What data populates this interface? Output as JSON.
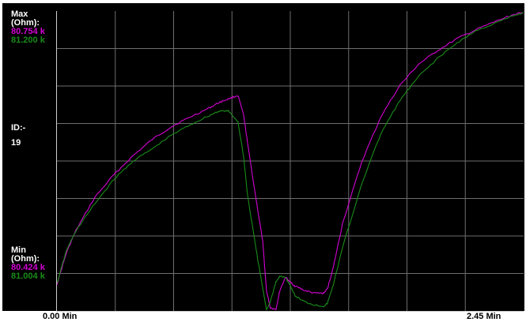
{
  "labels": {
    "max_title_1": "Max",
    "max_title_2": "(Ohm):",
    "max_series_a": "80.754 k",
    "max_series_b": "81.200 k",
    "id_label": "ID:-",
    "id_value": "19",
    "min_title_1": "Min",
    "min_title_2": "(Ohm):",
    "min_series_a": "80.424 k",
    "min_series_b": "81.004 k",
    "x_start": "0.00 Min",
    "x_end": "2.45 Min"
  },
  "colors": {
    "background": "#000000",
    "grid": "#6e6e6e",
    "series_a": "#d200d2",
    "series_b": "#1a8c1a"
  },
  "chart_data": {
    "type": "line",
    "x_unit": "Min",
    "xlim": [
      0,
      2.45
    ],
    "grid": true,
    "series": [
      {
        "color": "#d200d2",
        "ylim": [
          80.424,
          80.754
        ],
        "x": [
          0,
          0.05,
          0.1,
          0.2,
          0.3,
          0.4,
          0.5,
          0.6,
          0.7,
          0.8,
          0.85,
          0.9,
          0.95,
          0.98,
          1.0,
          1.05,
          1.08,
          1.1,
          1.12,
          1.15,
          1.17,
          1.2,
          1.22,
          1.25,
          1.3,
          1.35,
          1.4,
          1.42,
          1.45,
          1.5,
          1.6,
          1.7,
          1.8,
          1.9,
          2.0,
          2.1,
          2.2,
          2.3,
          2.4,
          2.45
        ],
        "y": [
          80.452,
          80.487,
          80.512,
          80.549,
          80.574,
          80.595,
          80.613,
          80.627,
          80.638,
          80.648,
          80.654,
          80.658,
          80.662,
          80.64,
          80.61,
          80.54,
          80.5,
          80.445,
          80.426,
          80.424,
          80.445,
          80.46,
          80.455,
          80.45,
          80.445,
          80.442,
          80.442,
          80.447,
          80.47,
          80.52,
          80.588,
          80.638,
          80.673,
          80.697,
          80.712,
          80.725,
          80.735,
          80.744,
          80.752,
          80.754
        ]
      },
      {
        "color": "#1a8c1a",
        "ylim": [
          81.004,
          81.2
        ],
        "x": [
          0,
          0.05,
          0.1,
          0.2,
          0.3,
          0.4,
          0.5,
          0.6,
          0.7,
          0.8,
          0.85,
          0.9,
          0.95,
          0.98,
          1.0,
          1.05,
          1.08,
          1.1,
          1.12,
          1.15,
          1.17,
          1.2,
          1.22,
          1.25,
          1.3,
          1.35,
          1.4,
          1.42,
          1.45,
          1.5,
          1.6,
          1.7,
          1.8,
          1.9,
          2.0,
          2.1,
          2.2,
          2.3,
          2.4,
          2.45
        ],
        "y": [
          81.021,
          81.043,
          81.056,
          81.074,
          81.09,
          81.102,
          81.11,
          81.119,
          81.126,
          81.132,
          81.135,
          81.135,
          81.128,
          81.105,
          81.08,
          81.04,
          81.018,
          81.004,
          81.009,
          81.022,
          81.026,
          81.025,
          81.021,
          81.013,
          81.009,
          81.007,
          81.006,
          81.008,
          81.02,
          81.045,
          81.087,
          81.12,
          81.142,
          81.158,
          81.17,
          81.18,
          81.188,
          81.193,
          81.198,
          81.2
        ]
      }
    ]
  }
}
